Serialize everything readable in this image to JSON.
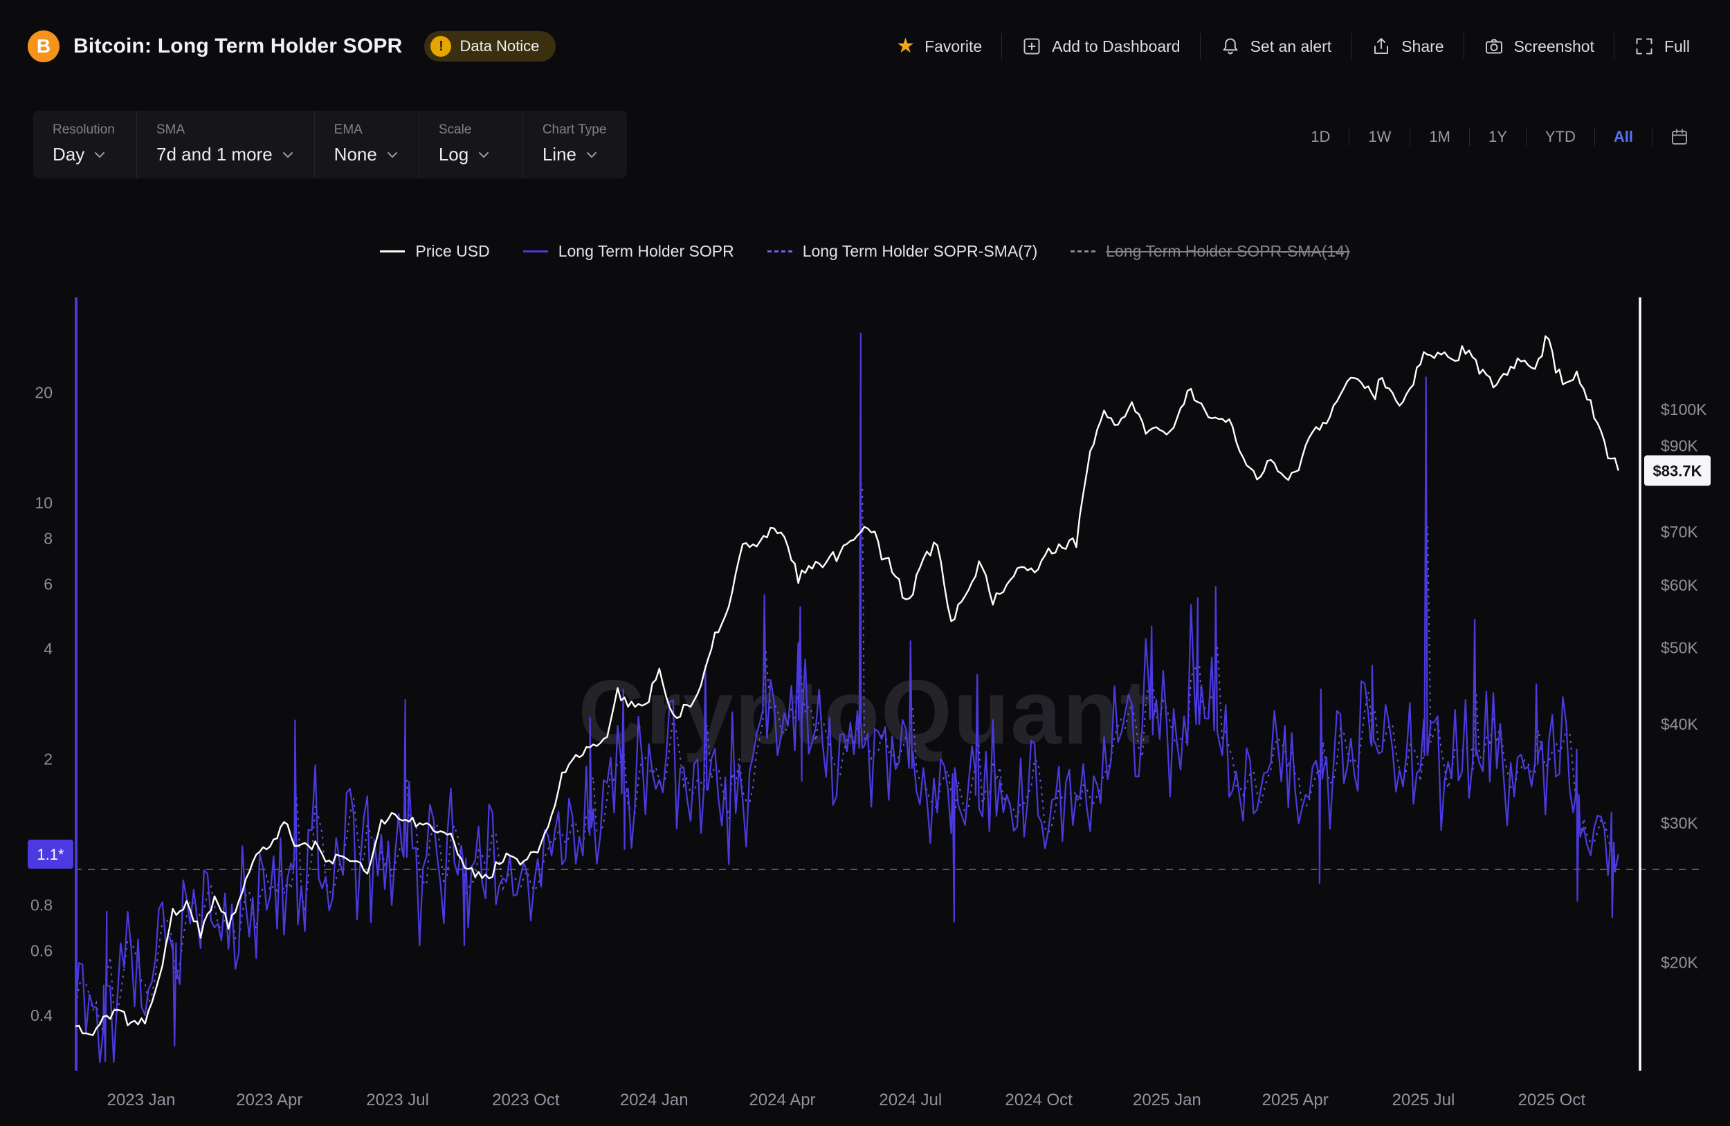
{
  "header": {
    "title": "Bitcoin: Long Term Holder SOPR",
    "data_notice": "Data Notice",
    "actions": [
      {
        "label": "Favorite"
      },
      {
        "label": "Add to Dashboard"
      },
      {
        "label": "Set an alert"
      },
      {
        "label": "Share"
      },
      {
        "label": "Screenshot"
      },
      {
        "label": "Full"
      }
    ]
  },
  "controls": {
    "groups": [
      {
        "label": "Resolution",
        "value": "Day"
      },
      {
        "label": "SMA",
        "value": "7d and 1 more"
      },
      {
        "label": "EMA",
        "value": "None"
      },
      {
        "label": "Scale",
        "value": "Log"
      },
      {
        "label": "Chart Type",
        "value": "Line"
      }
    ],
    "ranges": [
      "1D",
      "1W",
      "1M",
      "1Y",
      "YTD",
      "All"
    ],
    "active_range": "All"
  },
  "legend": {
    "items": [
      {
        "label": "Price USD",
        "color": "#ffffff",
        "style": "solid",
        "enabled": true
      },
      {
        "label": "Long Term Holder SOPR",
        "color": "#4b3ae0",
        "style": "solid",
        "enabled": true
      },
      {
        "label": "Long Term Holder SOPR-SMA(7)",
        "color": "#7061ee",
        "style": "dashed",
        "enabled": true
      },
      {
        "label": "Long Term Holder SOPR-SMA(14)",
        "color": "#8a8a8e",
        "style": "dashed",
        "enabled": false
      }
    ]
  },
  "colors": {
    "accent": "#5673f2",
    "purple": "#4b3ae0",
    "sma7": "#7061ee",
    "star": "#f0a818",
    "notice": "#e7a500",
    "price_line": "#ffffff",
    "watermark": "#3b3b44"
  },
  "chart_data": {
    "type": "line",
    "title": "Bitcoin: Long Term Holder SOPR",
    "watermark": "CryptoQuant",
    "x_axis": {
      "ticks": [
        {
          "v": 2023.0,
          "label": "2023 Jan"
        },
        {
          "v": 2023.25,
          "label": "2023 Apr"
        },
        {
          "v": 2023.5,
          "label": "2023 Jul"
        },
        {
          "v": 2023.75,
          "label": "2023 Oct"
        },
        {
          "v": 2024.0,
          "label": "2024 Jan"
        },
        {
          "v": 2024.25,
          "label": "2024 Apr"
        },
        {
          "v": 2024.5,
          "label": "2024 Jul"
        },
        {
          "v": 2024.75,
          "label": "2024 Oct"
        },
        {
          "v": 2025.0,
          "label": "2025 Jan"
        },
        {
          "v": 2025.25,
          "label": "2025 Apr"
        },
        {
          "v": 2025.5,
          "label": "2025 Jul"
        },
        {
          "v": 2025.75,
          "label": "2025 Oct"
        }
      ]
    },
    "left_axis": {
      "scale": "log",
      "metric": "Long Term Holder SOPR",
      "ticks": [
        {
          "v": 20,
          "label": "20"
        },
        {
          "v": 10,
          "label": "10"
        },
        {
          "v": 8,
          "label": "8"
        },
        {
          "v": 6,
          "label": "6"
        },
        {
          "v": 4,
          "label": "4"
        },
        {
          "v": 2,
          "label": "2"
        },
        {
          "v": 0.8,
          "label": "0.8"
        },
        {
          "v": 0.6,
          "label": "0.6"
        },
        {
          "v": 0.4,
          "label": "0.4"
        }
      ],
      "unity_line": 1,
      "current": {
        "value": 1.1,
        "label": "1.1*"
      }
    },
    "right_axis": {
      "scale": "log",
      "metric": "Price USD",
      "unit": "thousand USD",
      "ticks": [
        {
          "v": 100,
          "label": "$100K"
        },
        {
          "v": 90,
          "label": "$90K"
        },
        {
          "v": 70,
          "label": "$70K"
        },
        {
          "v": 60,
          "label": "$60K"
        },
        {
          "v": 50,
          "label": "$50K"
        },
        {
          "v": 40,
          "label": "$40K"
        },
        {
          "v": 30,
          "label": "$30K"
        },
        {
          "v": 20,
          "label": "$20K"
        }
      ],
      "current": {
        "value": 83.7,
        "label": "$83.7K"
      }
    },
    "series": [
      {
        "name": "Price USD",
        "axis": "right",
        "color": "#ffffff",
        "style": "solid",
        "start": 2022.872,
        "step": 0.0271,
        "values": [
          16.6,
          16.2,
          17.0,
          17.4,
          16.8,
          16.8,
          19.0,
          22.9,
          23.7,
          21.8,
          24.2,
          22.3,
          24.5,
          27.6,
          28.2,
          30.2,
          27.8,
          28.7,
          26.9,
          27.2,
          27.1,
          25.9,
          29.9,
          30.6,
          30.4,
          29.9,
          29.2,
          29.4,
          26.1,
          26.0,
          25.9,
          27.2,
          26.9,
          27.4,
          29.7,
          34.5,
          36.7,
          37.4,
          37.8,
          43.7,
          42.3,
          42.1,
          46.9,
          41.3,
          42.0,
          44.3,
          51.7,
          56.7,
          68.0,
          67.0,
          70.8,
          69.4,
          61.3,
          63.5,
          64.0,
          66.9,
          68.5,
          70.8,
          66.6,
          61.8,
          56.8,
          64.8,
          67.9,
          53.9,
          58.7,
          64.2,
          57.5,
          60.0,
          63.4,
          62.1,
          66.1,
          67.0,
          68.7,
          88.7,
          98.5,
          95.9,
          101.4,
          94.9,
          94.6,
          94.3,
          105.1,
          100.6,
          97.8,
          96.2,
          86.0,
          81.1,
          86.1,
          82.5,
          84.5,
          93.4,
          96.9,
          104.1,
          110.7,
          105.6,
          108.7,
          101.5,
          105.7,
          117.5,
          117.3,
          115.8,
          119.0,
          112.9,
          108.4,
          111.2,
          115.7,
          112.4,
          123.5,
          107.2,
          110.1,
          101.6,
          91.4,
          83.7
        ]
      },
      {
        "name": "Long Term Holder SOPR",
        "axis": "left",
        "color": "#4b3ae0",
        "style": "solid",
        "start": 2022.872,
        "step": 0.0271,
        "values": [
          0.45,
          0.42,
          0.48,
          0.5,
          0.47,
          0.52,
          0.55,
          0.62,
          0.7,
          0.75,
          0.78,
          0.82,
          0.78,
          0.72,
          0.9,
          0.98,
          1.0,
          1.08,
          1.02,
          1.06,
          1.02,
          1.05,
          1.0,
          1.03,
          1.1,
          1.15,
          1.12,
          1.08,
          1.07,
          1.0,
          1.02,
          1.01,
          1.03,
          1.02,
          1.05,
          1.08,
          1.25,
          1.3,
          1.45,
          1.55,
          1.7,
          1.8,
          1.85,
          1.9,
          1.7,
          1.6,
          1.75,
          2.0,
          2.1,
          2.5,
          2.9,
          2.4,
          2.6,
          2.3,
          2.2,
          2.1,
          2.0,
          2.3,
          2.1,
          2.0,
          1.9,
          1.75,
          1.6,
          1.9,
          1.55,
          1.6,
          1.65,
          1.45,
          1.6,
          1.7,
          1.6,
          1.6,
          1.7,
          1.75,
          2.1,
          2.6,
          2.5,
          2.7,
          2.4,
          2.2,
          2.2,
          2.6,
          2.4,
          2.1,
          2.0,
          1.8,
          1.7,
          1.75,
          1.55,
          1.65,
          1.85,
          1.9,
          2.1,
          2.3,
          2.1,
          2.0,
          1.9,
          2.0,
          2.3,
          2.2,
          2.0,
          2.2,
          1.95,
          1.8,
          1.85,
          1.95,
          1.8,
          2.0,
          1.6,
          1.55,
          1.3,
          1.1
        ],
        "spikes": [
          {
            "x": 2022.93,
            "v": 0.3
          },
          {
            "x": 2023.065,
            "v": 0.33
          },
          {
            "x": 2023.3,
            "v": 2.55
          },
          {
            "x": 2023.515,
            "v": 2.9
          },
          {
            "x": 2023.63,
            "v": 0.62
          },
          {
            "x": 2023.875,
            "v": 2.6
          },
          {
            "x": 2023.94,
            "v": 3.1
          },
          {
            "x": 2024.1,
            "v": 3.6
          },
          {
            "x": 2024.215,
            "v": 5.6
          },
          {
            "x": 2024.285,
            "v": 5.2
          },
          {
            "x": 2024.403,
            "v": 29.0
          },
          {
            "x": 2024.5,
            "v": 4.2
          },
          {
            "x": 2024.585,
            "v": 0.72
          },
          {
            "x": 2024.63,
            "v": 3.4
          },
          {
            "x": 2024.97,
            "v": 4.6
          },
          {
            "x": 2025.06,
            "v": 5.5
          },
          {
            "x": 2025.095,
            "v": 5.9
          },
          {
            "x": 2025.3,
            "v": 3.1
          },
          {
            "x": 2025.4,
            "v": 3.6
          },
          {
            "x": 2025.505,
            "v": 22.0
          },
          {
            "x": 2025.6,
            "v": 4.8
          },
          {
            "x": 2025.72,
            "v": 3.2
          },
          {
            "x": 2025.8,
            "v": 0.82
          },
          {
            "x": 2025.868,
            "v": 0.74
          }
        ]
      },
      {
        "name": "Long Term Holder SOPR-SMA(7)",
        "axis": "left",
        "color": "#7061ee",
        "style": "dashed",
        "derived": "sma_of_sopr",
        "window": 3,
        "enabled": true
      },
      {
        "name": "Long Term Holder SOPR-SMA(14)",
        "axis": "left",
        "color": "#8a8a8e",
        "style": "dashed",
        "enabled": false
      }
    ],
    "render_hints": {
      "noise_seed": 11,
      "substeps": 4,
      "price_noise_log10": 0.006,
      "sopr_noise_log10": 0.16,
      "tail_up_log10": 0.3,
      "tail_dn_log10": 0.22
    }
  }
}
